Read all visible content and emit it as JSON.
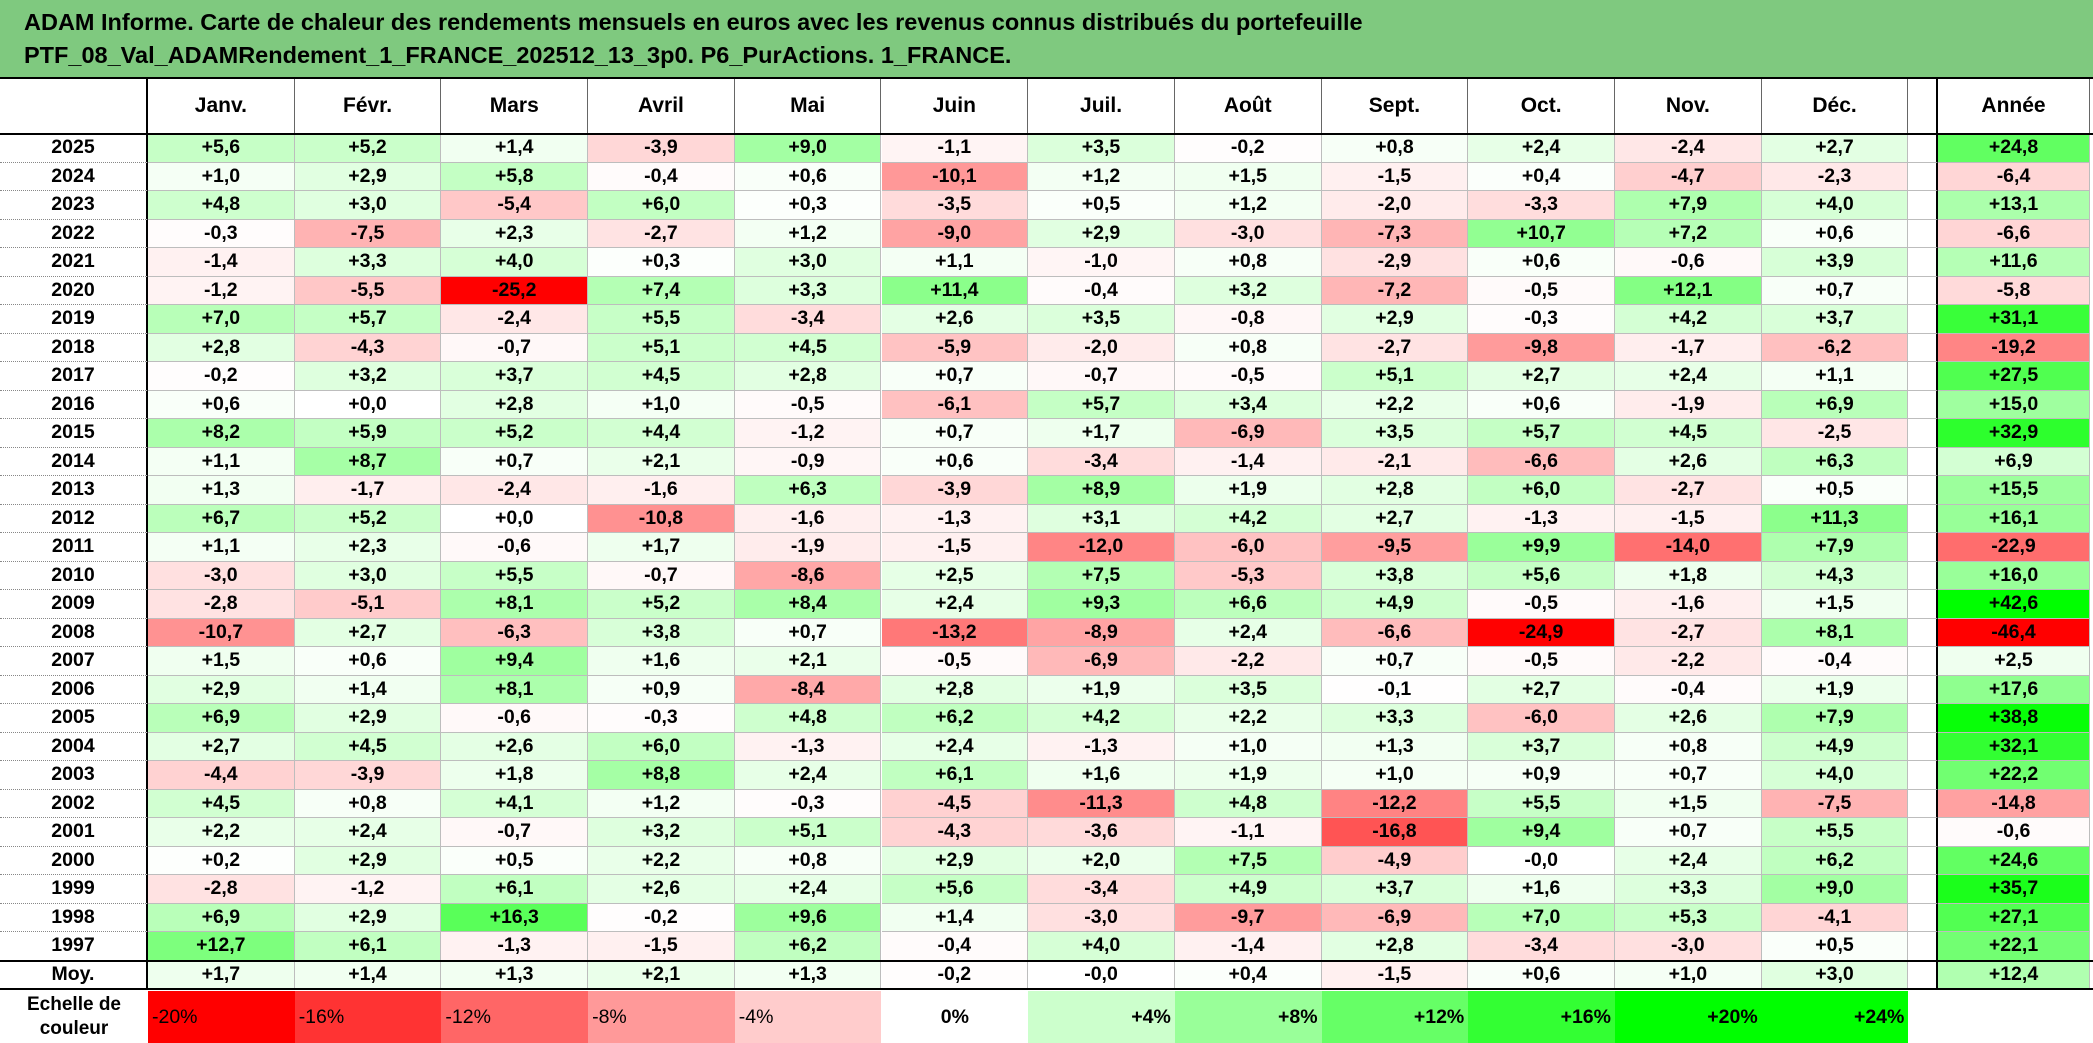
{
  "title": {
    "line1": "ADAM Informe. Carte de chaleur des rendements mensuels en euros avec les revenus connus distribués du portefeuille",
    "line2": "PTF_08_Val_ADAMRendement_1_FRANCE_202512_13_3p0. P6_PurActions. 1_FRANCE."
  },
  "chart_data": {
    "type": "heatmap",
    "title": "ADAM Informe. Carte de chaleur des rendements mensuels en euros avec les revenus connus distribués du portefeuille PTF_08_Val_ADAMRendement_1_FRANCE_202512_13_3p0. P6_PurActions. 1_FRANCE.",
    "columns": [
      "Janv.",
      "Févr.",
      "Mars",
      "Avril",
      "Mai",
      "Juin",
      "Juil.",
      "Août",
      "Sept.",
      "Oct.",
      "Nov.",
      "Déc."
    ],
    "annual_column": "Année",
    "rows": [
      {
        "year": "2025",
        "values": [
          "+5,6",
          "+5,2",
          "+1,4",
          "-3,9",
          "+9,0",
          "-1,1",
          "+3,5",
          "-0,2",
          "+0,8",
          "+2,4",
          "-2,4",
          "+2,7"
        ],
        "annual": "+24,8"
      },
      {
        "year": "2024",
        "values": [
          "+1,0",
          "+2,9",
          "+5,8",
          "-0,4",
          "+0,6",
          "-10,1",
          "+1,2",
          "+1,5",
          "-1,5",
          "+0,4",
          "-4,7",
          "-2,3"
        ],
        "annual": "-6,4"
      },
      {
        "year": "2023",
        "values": [
          "+4,8",
          "+3,0",
          "-5,4",
          "+6,0",
          "+0,3",
          "-3,5",
          "+0,5",
          "+1,2",
          "-2,0",
          "-3,3",
          "+7,9",
          "+4,0"
        ],
        "annual": "+13,1"
      },
      {
        "year": "2022",
        "values": [
          "-0,3",
          "-7,5",
          "+2,3",
          "-2,7",
          "+1,2",
          "-9,0",
          "+2,9",
          "-3,0",
          "-7,3",
          "+10,7",
          "+7,2",
          "+0,6"
        ],
        "annual": "-6,6"
      },
      {
        "year": "2021",
        "values": [
          "-1,4",
          "+3,3",
          "+4,0",
          "+0,3",
          "+3,0",
          "+1,1",
          "-1,0",
          "+0,8",
          "-2,9",
          "+0,6",
          "-0,6",
          "+3,9"
        ],
        "annual": "+11,6"
      },
      {
        "year": "2020",
        "values": [
          "-1,2",
          "-5,5",
          "-25,2",
          "+7,4",
          "+3,3",
          "+11,4",
          "-0,4",
          "+3,2",
          "-7,2",
          "-0,5",
          "+12,1",
          "+0,7"
        ],
        "annual": "-5,8"
      },
      {
        "year": "2019",
        "values": [
          "+7,0",
          "+5,7",
          "-2,4",
          "+5,5",
          "-3,4",
          "+2,6",
          "+3,5",
          "-0,8",
          "+2,9",
          "-0,3",
          "+4,2",
          "+3,7"
        ],
        "annual": "+31,1"
      },
      {
        "year": "2018",
        "values": [
          "+2,8",
          "-4,3",
          "-0,7",
          "+5,1",
          "+4,5",
          "-5,9",
          "-2,0",
          "+0,8",
          "-2,7",
          "-9,8",
          "-1,7",
          "-6,2"
        ],
        "annual": "-19,2"
      },
      {
        "year": "2017",
        "values": [
          "-0,2",
          "+3,2",
          "+3,7",
          "+4,5",
          "+2,8",
          "+0,7",
          "-0,7",
          "-0,5",
          "+5,1",
          "+2,7",
          "+2,4",
          "+1,1"
        ],
        "annual": "+27,5"
      },
      {
        "year": "2016",
        "values": [
          "+0,6",
          "+0,0",
          "+2,8",
          "+1,0",
          "-0,5",
          "-6,1",
          "+5,7",
          "+3,4",
          "+2,2",
          "+0,6",
          "-1,9",
          "+6,9"
        ],
        "annual": "+15,0"
      },
      {
        "year": "2015",
        "values": [
          "+8,2",
          "+5,9",
          "+5,2",
          "+4,4",
          "-1,2",
          "+0,7",
          "+1,7",
          "-6,9",
          "+3,5",
          "+5,7",
          "+4,5",
          "-2,5"
        ],
        "annual": "+32,9"
      },
      {
        "year": "2014",
        "values": [
          "+1,1",
          "+8,7",
          "+0,7",
          "+2,1",
          "-0,9",
          "+0,6",
          "-3,4",
          "-1,4",
          "-2,1",
          "-6,6",
          "+2,6",
          "+6,3"
        ],
        "annual": "+6,9"
      },
      {
        "year": "2013",
        "values": [
          "+1,3",
          "-1,7",
          "-2,4",
          "-1,6",
          "+6,3",
          "-3,9",
          "+8,9",
          "+1,9",
          "+2,8",
          "+6,0",
          "-2,7",
          "+0,5"
        ],
        "annual": "+15,5"
      },
      {
        "year": "2012",
        "values": [
          "+6,7",
          "+5,2",
          "+0,0",
          "-10,8",
          "-1,6",
          "-1,3",
          "+3,1",
          "+4,2",
          "+2,7",
          "-1,3",
          "-1,5",
          "+11,3"
        ],
        "annual": "+16,1"
      },
      {
        "year": "2011",
        "values": [
          "+1,1",
          "+2,3",
          "-0,6",
          "+1,7",
          "-1,9",
          "-1,5",
          "-12,0",
          "-6,0",
          "-9,5",
          "+9,9",
          "-14,0",
          "+7,9"
        ],
        "annual": "-22,9"
      },
      {
        "year": "2010",
        "values": [
          "-3,0",
          "+3,0",
          "+5,5",
          "-0,7",
          "-8,6",
          "+2,5",
          "+7,5",
          "-5,3",
          "+3,8",
          "+5,6",
          "+1,8",
          "+4,3"
        ],
        "annual": "+16,0"
      },
      {
        "year": "2009",
        "values": [
          "-2,8",
          "-5,1",
          "+8,1",
          "+5,2",
          "+8,4",
          "+2,4",
          "+9,3",
          "+6,6",
          "+4,9",
          "-0,5",
          "-1,6",
          "+1,5"
        ],
        "annual": "+42,6"
      },
      {
        "year": "2008",
        "values": [
          "-10,7",
          "+2,7",
          "-6,3",
          "+3,8",
          "+0,7",
          "-13,2",
          "-8,9",
          "+2,4",
          "-6,6",
          "-24,9",
          "-2,7",
          "+8,1"
        ],
        "annual": "-46,4"
      },
      {
        "year": "2007",
        "values": [
          "+1,5",
          "+0,6",
          "+9,4",
          "+1,6",
          "+2,1",
          "-0,5",
          "-6,9",
          "-2,2",
          "+0,7",
          "-0,5",
          "-2,2",
          "-0,4"
        ],
        "annual": "+2,5"
      },
      {
        "year": "2006",
        "values": [
          "+2,9",
          "+1,4",
          "+8,1",
          "+0,9",
          "-8,4",
          "+2,8",
          "+1,9",
          "+3,5",
          "-0,1",
          "+2,7",
          "-0,4",
          "+1,9"
        ],
        "annual": "+17,6"
      },
      {
        "year": "2005",
        "values": [
          "+6,9",
          "+2,9",
          "-0,6",
          "-0,3",
          "+4,8",
          "+6,2",
          "+4,2",
          "+2,2",
          "+3,3",
          "-6,0",
          "+2,6",
          "+7,9"
        ],
        "annual": "+38,8"
      },
      {
        "year": "2004",
        "values": [
          "+2,7",
          "+4,5",
          "+2,6",
          "+6,0",
          "-1,3",
          "+2,4",
          "-1,3",
          "+1,0",
          "+1,3",
          "+3,7",
          "+0,8",
          "+4,9"
        ],
        "annual": "+32,1"
      },
      {
        "year": "2003",
        "values": [
          "-4,4",
          "-3,9",
          "+1,8",
          "+8,8",
          "+2,4",
          "+6,1",
          "+1,6",
          "+1,9",
          "+1,0",
          "+0,9",
          "+0,7",
          "+4,0"
        ],
        "annual": "+22,2"
      },
      {
        "year": "2002",
        "values": [
          "+4,5",
          "+0,8",
          "+4,1",
          "+1,2",
          "-0,3",
          "-4,5",
          "-11,3",
          "+4,8",
          "-12,2",
          "+5,5",
          "+1,5",
          "-7,5"
        ],
        "annual": "-14,8"
      },
      {
        "year": "2001",
        "values": [
          "+2,2",
          "+2,4",
          "-0,7",
          "+3,2",
          "+5,1",
          "-4,3",
          "-3,6",
          "-1,1",
          "-16,8",
          "+9,4",
          "+0,7",
          "+5,5"
        ],
        "annual": "-0,6"
      },
      {
        "year": "2000",
        "values": [
          "+0,2",
          "+2,9",
          "+0,5",
          "+2,2",
          "+0,8",
          "+2,9",
          "+2,0",
          "+7,5",
          "-4,9",
          "-0,0",
          "+2,4",
          "+6,2"
        ],
        "annual": "+24,6"
      },
      {
        "year": "1999",
        "values": [
          "-2,8",
          "-1,2",
          "+6,1",
          "+2,6",
          "+2,4",
          "+5,6",
          "-3,4",
          "+4,9",
          "+3,7",
          "+1,6",
          "+3,3",
          "+9,0"
        ],
        "annual": "+35,7"
      },
      {
        "year": "1998",
        "values": [
          "+6,9",
          "+2,9",
          "+16,3",
          "-0,2",
          "+9,6",
          "+1,4",
          "-3,0",
          "-9,7",
          "-6,9",
          "+7,0",
          "+5,3",
          "-4,1"
        ],
        "annual": "+27,1"
      },
      {
        "year": "1997",
        "values": [
          "+12,7",
          "+6,1",
          "-1,3",
          "-1,5",
          "+6,2",
          "-0,4",
          "+4,0",
          "-1,4",
          "+2,8",
          "-3,4",
          "-3,0",
          "+0,5"
        ],
        "annual": "+22,1"
      }
    ],
    "average": {
      "label": "Moy.",
      "values": [
        "+1,7",
        "+1,4",
        "+1,3",
        "+2,1",
        "+1,3",
        "-0,2",
        "-0,0",
        "+0,4",
        "-1,5",
        "+0,6",
        "+1,0",
        "+3,0"
      ],
      "annual": "+12,4"
    },
    "color_scale": {
      "label": "Echelle de couleur",
      "steps": [
        "-20%",
        "-16%",
        "-12%",
        "-8%",
        "-4%",
        "0%",
        "+4%",
        "+8%",
        "+12%",
        "+16%",
        "+20%",
        "+24%"
      ],
      "negative_color": "#ff0000",
      "positive_color": "#00ff00",
      "neutral_color": "#ffffff"
    }
  }
}
